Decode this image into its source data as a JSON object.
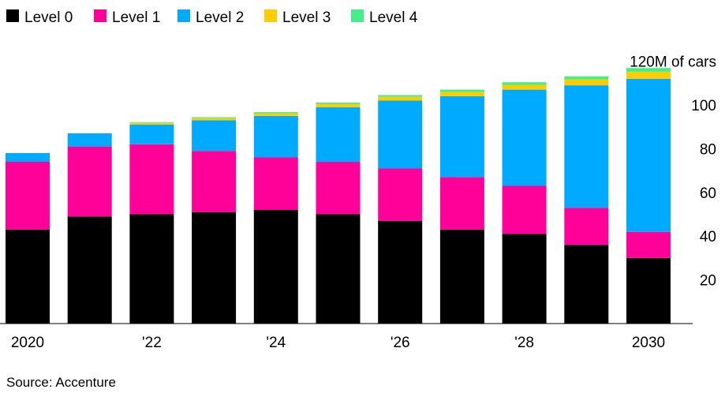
{
  "chart_data": {
    "type": "bar",
    "stacked": true,
    "x": [
      2020,
      2021,
      2022,
      2023,
      2024,
      2025,
      2026,
      2027,
      2028,
      2029,
      2030
    ],
    "x_tick_labels": [
      {
        "x": 2020,
        "label": "2020"
      },
      {
        "x": 2022,
        "label": "'22"
      },
      {
        "x": 2024,
        "label": "'24"
      },
      {
        "x": 2026,
        "label": "'26"
      },
      {
        "x": 2028,
        "label": "'28"
      },
      {
        "x": 2030,
        "label": "2030"
      }
    ],
    "series": [
      {
        "name": "Level 0",
        "color": "#000000",
        "values": [
          43,
          49,
          50,
          51,
          52,
          50,
          47,
          43,
          41,
          36,
          30
        ]
      },
      {
        "name": "Level 1",
        "color": "#ff0099",
        "values": [
          31,
          32,
          32,
          28,
          24,
          24,
          24,
          24,
          22,
          17,
          12
        ]
      },
      {
        "name": "Level 2",
        "color": "#00aaff",
        "values": [
          4,
          6,
          9,
          14,
          19,
          25,
          31,
          37,
          44,
          56,
          70
        ]
      },
      {
        "name": "Level 3",
        "color": "#ffcc00",
        "values": [
          0,
          0,
          0.8,
          1,
          1.2,
          1.5,
          1.7,
          2,
          2.2,
          2.7,
          3.2
        ]
      },
      {
        "name": "Level 4",
        "color": "#44ee88",
        "values": [
          0,
          0,
          0.3,
          0.4,
          0.5,
          0.6,
          0.8,
          1,
          1.2,
          1.4,
          1.7
        ]
      }
    ],
    "y_unit_label": "120M of cars",
    "y_ticks": [
      20,
      40,
      60,
      80,
      100
    ],
    "ylim": [
      0,
      120
    ],
    "title": "",
    "xlabel": "",
    "ylabel": "",
    "grid": false,
    "legend_position": "top-left",
    "source": "Source: Accenture"
  }
}
